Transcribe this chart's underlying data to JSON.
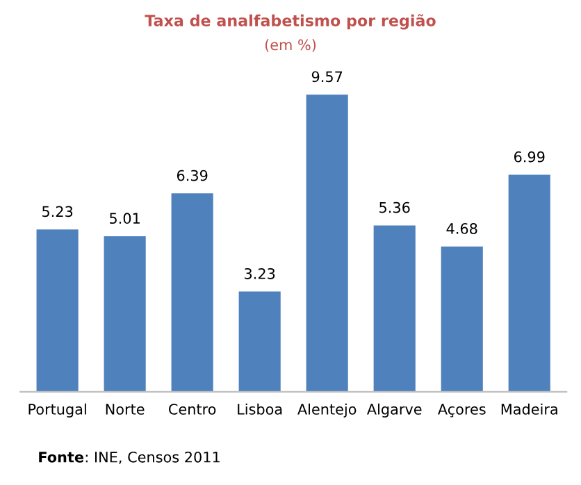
{
  "chart_data": {
    "type": "bar",
    "title": "Taxa de analfabetismo por região",
    "subtitle": "(em %)",
    "categories": [
      "Portugal",
      "Norte",
      "Centro",
      "Lisboa",
      "Alentejo",
      "Algarve",
      "Açores",
      "Madeira"
    ],
    "values": [
      5.23,
      5.01,
      6.39,
      3.23,
      9.57,
      5.36,
      4.68,
      6.99
    ],
    "color": "#4f81bd",
    "data_labels": true,
    "grid": false,
    "legend": false,
    "annotations": [
      "Fonte: INE, Censos 2011"
    ]
  }
}
